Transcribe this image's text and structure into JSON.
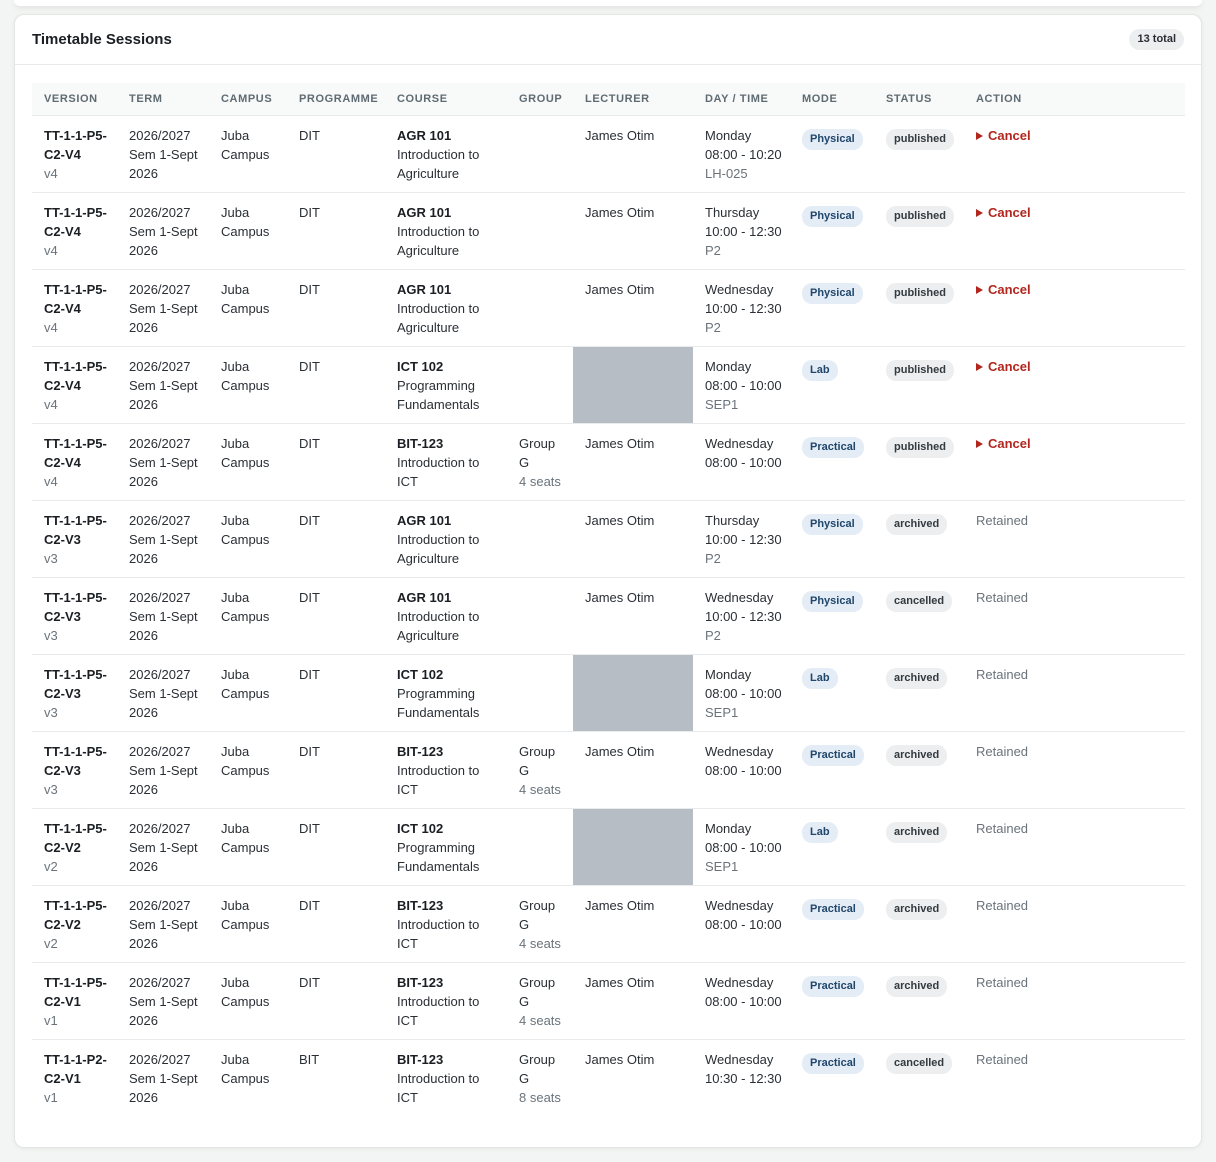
{
  "panel": {
    "title": "Timetable Sessions",
    "total_badge": "13 total"
  },
  "columns": [
    "VERSION",
    "TERM",
    "CAMPUS",
    "PROGRAMME",
    "COURSE",
    "GROUP",
    "LECTURER",
    "DAY / TIME",
    "MODE",
    "STATUS",
    "ACTION"
  ],
  "rows": [
    {
      "version_code": "TT-1-1-P5-C2-V4",
      "version": "v4",
      "term_year": "2026/2027",
      "term_sem": "Sem 1-Sept",
      "term_year2": "2026",
      "campus1": "Juba",
      "campus2": "Campus",
      "programme": "DIT",
      "course_code": "AGR 101",
      "course_name1": "Introduction to",
      "course_name2": "Agriculture",
      "group1": "",
      "group2": "",
      "seats": "",
      "lecturer": "James Otim",
      "redacted": false,
      "day": "Monday",
      "time": "08:00 - 10:20",
      "room": "LH-025",
      "mode": "Physical",
      "status": "published",
      "action": "Cancel",
      "action_type": "cancel"
    },
    {
      "version_code": "TT-1-1-P5-C2-V4",
      "version": "v4",
      "term_year": "2026/2027",
      "term_sem": "Sem 1-Sept",
      "term_year2": "2026",
      "campus1": "Juba",
      "campus2": "Campus",
      "programme": "DIT",
      "course_code": "AGR 101",
      "course_name1": "Introduction to",
      "course_name2": "Agriculture",
      "group1": "",
      "group2": "",
      "seats": "",
      "lecturer": "James Otim",
      "redacted": false,
      "day": "Thursday",
      "time": "10:00 - 12:30",
      "room": "P2",
      "mode": "Physical",
      "status": "published",
      "action": "Cancel",
      "action_type": "cancel"
    },
    {
      "version_code": "TT-1-1-P5-C2-V4",
      "version": "v4",
      "term_year": "2026/2027",
      "term_sem": "Sem 1-Sept",
      "term_year2": "2026",
      "campus1": "Juba",
      "campus2": "Campus",
      "programme": "DIT",
      "course_code": "AGR 101",
      "course_name1": "Introduction to",
      "course_name2": "Agriculture",
      "group1": "",
      "group2": "",
      "seats": "",
      "lecturer": "James Otim",
      "redacted": false,
      "day": "Wednesday",
      "time": "10:00 - 12:30",
      "room": "P2",
      "mode": "Physical",
      "status": "published",
      "action": "Cancel",
      "action_type": "cancel"
    },
    {
      "version_code": "TT-1-1-P5-C2-V4",
      "version": "v4",
      "term_year": "2026/2027",
      "term_sem": "Sem 1-Sept",
      "term_year2": "2026",
      "campus1": "Juba",
      "campus2": "Campus",
      "programme": "DIT",
      "course_code": "ICT 102",
      "course_name1": "Programming",
      "course_name2": "Fundamentals",
      "group1": "",
      "group2": "",
      "seats": "",
      "lecturer": "",
      "redacted": true,
      "day": "Monday",
      "time": "08:00 - 10:00",
      "room": "SEP1",
      "mode": "Lab",
      "status": "published",
      "action": "Cancel",
      "action_type": "cancel"
    },
    {
      "version_code": "TT-1-1-P5-C2-V4",
      "version": "v4",
      "term_year": "2026/2027",
      "term_sem": "Sem 1-Sept",
      "term_year2": "2026",
      "campus1": "Juba",
      "campus2": "Campus",
      "programme": "DIT",
      "course_code": "BIT-123",
      "course_name1": "Introduction to",
      "course_name2": "ICT",
      "group1": "Group",
      "group2": "G",
      "seats": "4 seats",
      "lecturer": "James Otim",
      "redacted": false,
      "day": "Wednesday",
      "time": "08:00 - 10:00",
      "room": "",
      "mode": "Practical",
      "status": "published",
      "action": "Cancel",
      "action_type": "cancel"
    },
    {
      "version_code": "TT-1-1-P5-C2-V3",
      "version": "v3",
      "term_year": "2026/2027",
      "term_sem": "Sem 1-Sept",
      "term_year2": "2026",
      "campus1": "Juba",
      "campus2": "Campus",
      "programme": "DIT",
      "course_code": "AGR 101",
      "course_name1": "Introduction to",
      "course_name2": "Agriculture",
      "group1": "",
      "group2": "",
      "seats": "",
      "lecturer": "James Otim",
      "redacted": false,
      "day": "Thursday",
      "time": "10:00 - 12:30",
      "room": "P2",
      "mode": "Physical",
      "status": "archived",
      "action": "Retained",
      "action_type": "retained"
    },
    {
      "version_code": "TT-1-1-P5-C2-V3",
      "version": "v3",
      "term_year": "2026/2027",
      "term_sem": "Sem 1-Sept",
      "term_year2": "2026",
      "campus1": "Juba",
      "campus2": "Campus",
      "programme": "DIT",
      "course_code": "AGR 101",
      "course_name1": "Introduction to",
      "course_name2": "Agriculture",
      "group1": "",
      "group2": "",
      "seats": "",
      "lecturer": "James Otim",
      "redacted": false,
      "day": "Wednesday",
      "time": "10:00 - 12:30",
      "room": "P2",
      "mode": "Physical",
      "status": "cancelled",
      "action": "Retained",
      "action_type": "retained"
    },
    {
      "version_code": "TT-1-1-P5-C2-V3",
      "version": "v3",
      "term_year": "2026/2027",
      "term_sem": "Sem 1-Sept",
      "term_year2": "2026",
      "campus1": "Juba",
      "campus2": "Campus",
      "programme": "DIT",
      "course_code": "ICT 102",
      "course_name1": "Programming",
      "course_name2": "Fundamentals",
      "group1": "",
      "group2": "",
      "seats": "",
      "lecturer": "",
      "redacted": true,
      "day": "Monday",
      "time": "08:00 - 10:00",
      "room": "SEP1",
      "mode": "Lab",
      "status": "archived",
      "action": "Retained",
      "action_type": "retained"
    },
    {
      "version_code": "TT-1-1-P5-C2-V3",
      "version": "v3",
      "term_year": "2026/2027",
      "term_sem": "Sem 1-Sept",
      "term_year2": "2026",
      "campus1": "Juba",
      "campus2": "Campus",
      "programme": "DIT",
      "course_code": "BIT-123",
      "course_name1": "Introduction to",
      "course_name2": "ICT",
      "group1": "Group",
      "group2": "G",
      "seats": "4 seats",
      "lecturer": "James Otim",
      "redacted": false,
      "day": "Wednesday",
      "time": "08:00 - 10:00",
      "room": "",
      "mode": "Practical",
      "status": "archived",
      "action": "Retained",
      "action_type": "retained"
    },
    {
      "version_code": "TT-1-1-P5-C2-V2",
      "version": "v2",
      "term_year": "2026/2027",
      "term_sem": "Sem 1-Sept",
      "term_year2": "2026",
      "campus1": "Juba",
      "campus2": "Campus",
      "programme": "DIT",
      "course_code": "ICT 102",
      "course_name1": "Programming",
      "course_name2": "Fundamentals",
      "group1": "",
      "group2": "",
      "seats": "",
      "lecturer": "",
      "redacted": true,
      "day": "Monday",
      "time": "08:00 - 10:00",
      "room": "SEP1",
      "mode": "Lab",
      "status": "archived",
      "action": "Retained",
      "action_type": "retained"
    },
    {
      "version_code": "TT-1-1-P5-C2-V2",
      "version": "v2",
      "term_year": "2026/2027",
      "term_sem": "Sem 1-Sept",
      "term_year2": "2026",
      "campus1": "Juba",
      "campus2": "Campus",
      "programme": "DIT",
      "course_code": "BIT-123",
      "course_name1": "Introduction to",
      "course_name2": "ICT",
      "group1": "Group",
      "group2": "G",
      "seats": "4 seats",
      "lecturer": "James Otim",
      "redacted": false,
      "day": "Wednesday",
      "time": "08:00 - 10:00",
      "room": "",
      "mode": "Practical",
      "status": "archived",
      "action": "Retained",
      "action_type": "retained"
    },
    {
      "version_code": "TT-1-1-P5-C2-V1",
      "version": "v1",
      "term_year": "2026/2027",
      "term_sem": "Sem 1-Sept",
      "term_year2": "2026",
      "campus1": "Juba",
      "campus2": "Campus",
      "programme": "DIT",
      "course_code": "BIT-123",
      "course_name1": "Introduction to",
      "course_name2": "ICT",
      "group1": "Group",
      "group2": "G",
      "seats": "4 seats",
      "lecturer": "James Otim",
      "redacted": false,
      "day": "Wednesday",
      "time": "08:00 - 10:00",
      "room": "",
      "mode": "Practical",
      "status": "archived",
      "action": "Retained",
      "action_type": "retained"
    },
    {
      "version_code": "TT-1-1-P2-C2-V1",
      "version": "v1",
      "term_year": "2026/2027",
      "term_sem": "Sem 1-Sept",
      "term_year2": "2026",
      "campus1": "Juba",
      "campus2": "Campus",
      "programme": "BIT",
      "course_code": "BIT-123",
      "course_name1": "Introduction to",
      "course_name2": "ICT",
      "group1": "Group",
      "group2": "G",
      "seats": "8 seats",
      "lecturer": "James Otim",
      "redacted": false,
      "day": "Wednesday",
      "time": "10:30 - 12:30",
      "room": "",
      "mode": "Practical",
      "status": "cancelled",
      "action": "Retained",
      "action_type": "retained"
    }
  ]
}
